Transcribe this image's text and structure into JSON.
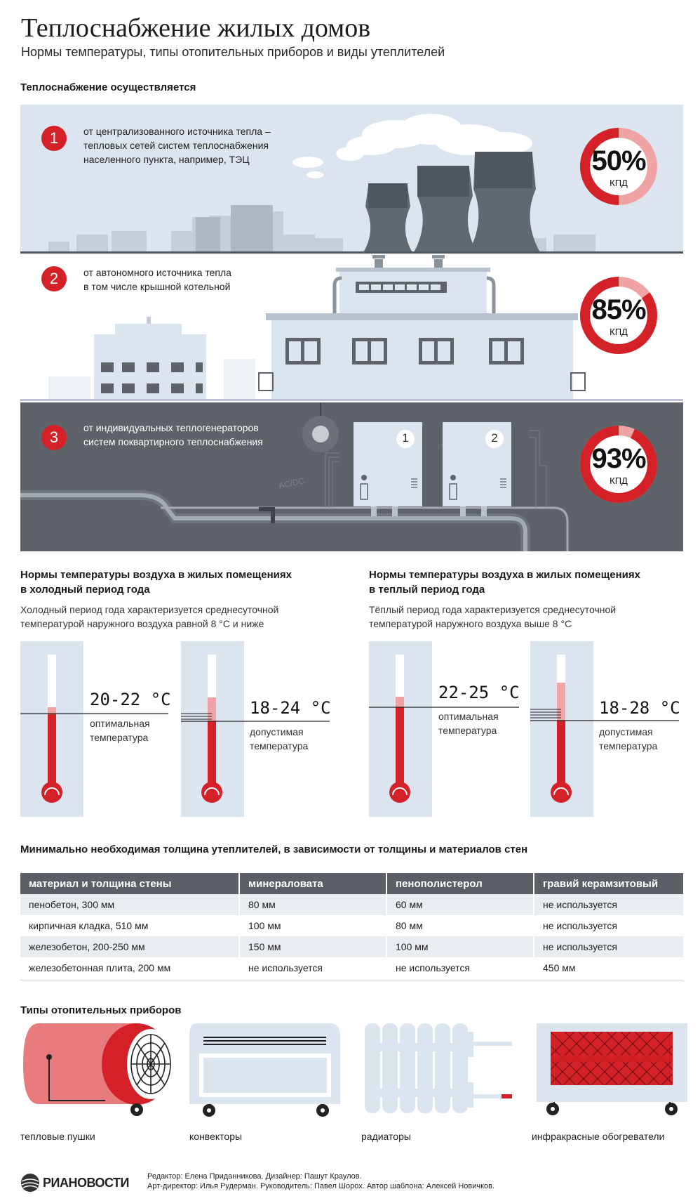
{
  "header": {
    "title": "Теплоснабжение жилых домов",
    "subtitle": "Нормы температуры, типы отопительных приборов и виды утеплителей"
  },
  "supply": {
    "heading": "Теплоснабжение осуществляется",
    "items": [
      {
        "number": "1",
        "lines": [
          "от централизованного источника тепла –",
          "тепловых сетей систем теплоснабжения",
          "населенного пункта, например, ТЭЦ"
        ],
        "kpd_value": "50%",
        "kpd_label": "КПД",
        "kpd_fraction": 0.5
      },
      {
        "number": "2",
        "lines": [
          "от автономного источника тепла",
          "в том числе крышной котельной"
        ],
        "kpd_value": "85%",
        "kpd_label": "КПД",
        "kpd_fraction": 0.85
      },
      {
        "number": "3",
        "lines": [
          "от индивидуальных теплогенераторов",
          "систем поквартирного теплоснабжения"
        ],
        "kpd_value": "93%",
        "kpd_label": "КПД",
        "kpd_fraction": 0.93
      }
    ],
    "boiler_labels": [
      "1",
      "2"
    ],
    "wall_text": "AC/DC"
  },
  "cold": {
    "heading": [
      "Нормы температуры воздуха в жилых помещениях",
      "в холодный период года"
    ],
    "desc": [
      "Холодный период года характеризуется среднесуточной",
      "температурой наружного воздуха равной 8 °С и ниже"
    ],
    "optimal_value": "20-22 °С",
    "optimal_label": [
      "оптимальная",
      "температура"
    ],
    "allowed_value": "18-24 °С",
    "allowed_label": [
      "допустимая",
      "температура"
    ]
  },
  "warm": {
    "heading": [
      "Нормы температуры воздуха в жилых помещениях",
      "в теплый период года"
    ],
    "desc": [
      "Тёплый период года характеризуется среднесуточной",
      "температурой наружного воздуха выше 8 °С"
    ],
    "optimal_value": "22-25 °С",
    "optimal_label": [
      "оптимальная",
      "температура"
    ],
    "allowed_value": "18-28 °С",
    "allowed_label": [
      "допустимая",
      "температура"
    ]
  },
  "insulation": {
    "heading": "Минимально необходимая толщина утеплителей, в зависимости от толщины и материалов стен",
    "columns": [
      "материал и толщина стены",
      "минераловата",
      "пенополистерол",
      "гравий керамзитовый"
    ],
    "rows": [
      [
        "пенобетон, 300 мм",
        "80 мм",
        "60 мм",
        "не используется"
      ],
      [
        "кирпичная кладка, 510 мм",
        "100 мм",
        "80 мм",
        "не используется"
      ],
      [
        "железобетон, 200-250 мм",
        "150 мм",
        "100 мм",
        "не используется"
      ],
      [
        "железобетонная плита, 200 мм",
        "не используется",
        "не используется",
        "450 мм"
      ]
    ]
  },
  "heaters": {
    "heading": "Типы отопительных приборов",
    "labels": [
      "тепловые пушки",
      "конвекторы",
      "радиаторы",
      "инфракрасные обогреватели"
    ]
  },
  "footer": {
    "logo_text": "РИАНОВОСТИ",
    "credits_line1": "Редактор: Елена Приданникова. Дизайнер: Пашут Краулов.",
    "credits_line2": "Арт-директор: Илья Рудерман. Руководитель: Павел Шорох. Автор шаблона: Алексей Новичков."
  },
  "colors": {
    "accent_red": "#d42027",
    "light_red": "#efa3a5",
    "panel_blue": "#dbe4ef",
    "dark_gray": "#5e636a"
  }
}
